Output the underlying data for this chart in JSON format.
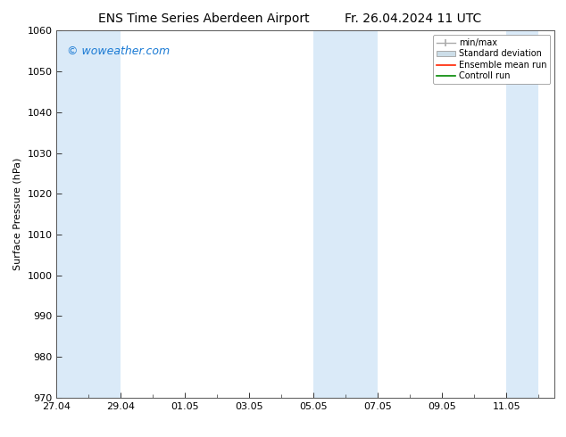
{
  "title": "ENS Time Series Aberdeen Airport",
  "title2": "Fr. 26.04.2024 11 UTC",
  "ylabel": "Surface Pressure (hPa)",
  "ylim": [
    970,
    1060
  ],
  "yticks": [
    970,
    980,
    990,
    1000,
    1010,
    1020,
    1030,
    1040,
    1050,
    1060
  ],
  "xtick_labels": [
    "27.04",
    "29.04",
    "01.05",
    "03.05",
    "05.05",
    "07.05",
    "09.05",
    "11.05"
  ],
  "watermark": "© woweather.com",
  "watermark_color": "#1a7ad4",
  "bg_color": "#ffffff",
  "shaded_band_color": "#daeaf8",
  "legend_minmax_color": "#aaaaaa",
  "legend_std_facecolor": "#ccdde8",
  "legend_std_edgecolor": "#aaaaaa",
  "legend_ens_color": "#ff2200",
  "legend_ctrl_color": "#008800",
  "title_fontsize": 10,
  "ylabel_fontsize": 8,
  "tick_fontsize": 8,
  "legend_fontsize": 7,
  "watermark_fontsize": 9,
  "num_days": 16,
  "shade_day_ranges": [
    [
      0,
      1
    ],
    [
      1,
      2
    ],
    [
      8,
      9
    ],
    [
      9,
      10
    ],
    [
      14,
      15
    ]
  ]
}
